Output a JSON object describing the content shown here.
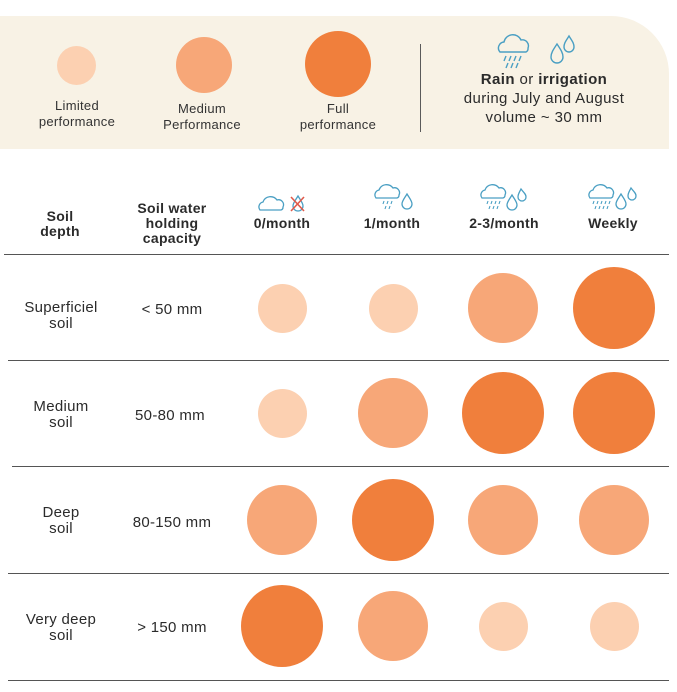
{
  "colors": {
    "limited": "#fcd0b1",
    "medium": "#f7a778",
    "full": "#f07f3c",
    "panel": "#f8f2e5",
    "icon": "#4a9fc3",
    "cross": "#e05a4a"
  },
  "legend": {
    "items": [
      {
        "level": "limited",
        "line1": "Limited",
        "line2": "performance"
      },
      {
        "level": "medium",
        "line1": "Medium",
        "line2": "Performance"
      },
      {
        "level": "full",
        "line1": "Full",
        "line2": "performance"
      }
    ],
    "rain_bold": "Rain",
    "rain_or": "or",
    "rain_irrigation": "irrigation",
    "line2": "during July and August",
    "line3": "volume ~ 30 mm",
    "icons": [
      "rain-cloud-icon",
      "water-drops-icon"
    ]
  },
  "table": {
    "header_soil_depth": [
      "Soil",
      "depth"
    ],
    "header_capacity": [
      "Soil water",
      "holding",
      "capacity"
    ],
    "columns": [
      {
        "label": "0/month",
        "icon": "no-rain-icon"
      },
      {
        "label": "1/month",
        "icon": "rain-drop-icon"
      },
      {
        "label": "2-3/month",
        "icon": "rain-drops-icon"
      },
      {
        "label": "Weekly",
        "icon": "heavy-rain-drops-icon"
      }
    ],
    "rows": [
      {
        "soil": [
          "Superficiel",
          "soil"
        ],
        "capacity": "< 50 mm",
        "levels": [
          "limited",
          "limited",
          "medium",
          "full"
        ]
      },
      {
        "soil": [
          "Medium",
          "soil"
        ],
        "capacity": "50-80 mm",
        "levels": [
          "limited",
          "medium",
          "full",
          "full"
        ]
      },
      {
        "soil": [
          "Deep",
          "soil"
        ],
        "capacity": "80-150 mm",
        "levels": [
          "medium",
          "full",
          "medium",
          "medium"
        ]
      },
      {
        "soil": [
          "Very deep",
          "soil"
        ],
        "capacity": "> 150 mm",
        "levels": [
          "full",
          "medium",
          "limited",
          "limited"
        ]
      }
    ]
  }
}
